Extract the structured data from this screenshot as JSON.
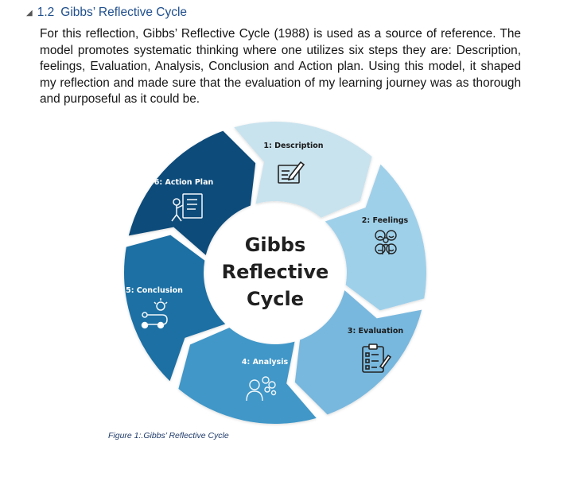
{
  "section": {
    "number": "1.2",
    "title": "Gibbs’ Reflective Cycle"
  },
  "paragraph": "For this reflection, Gibbs’ Reflective Cycle (1988) is used as a source of reference. The model promotes systematic thinking where one utilizes six steps they are: Description, feelings, Evaluation, Analysis, Conclusion and Action plan. Using this model, it shaped my reflection and made sure that the evaluation of my learning journey was as thorough and purposeful as it could be.",
  "diagram": {
    "center_lines": [
      "Gibbs",
      "Reflective",
      "Cycle"
    ],
    "segments": [
      {
        "label": "1: Description",
        "color": "#c9e3ee",
        "icon": "document-edit-icon"
      },
      {
        "label": "2: Feelings",
        "color": "#9fd0ea",
        "icon": "faces-icon"
      },
      {
        "label": "3: Evaluation",
        "color": "#79b8de",
        "icon": "checklist-clipboard-icon"
      },
      {
        "label": "4: Analysis",
        "color": "#3f97c8",
        "icon": "person-thinking-icon"
      },
      {
        "label": "5: Conclusion",
        "color": "#1f6fa4",
        "icon": "path-lightbulb-icon"
      },
      {
        "label": "6: Action Plan",
        "color": "#0e4c7a",
        "icon": "plan-board-icon"
      }
    ]
  },
  "caption": "Figure 1:.Gibbs’ Reflective Cycle"
}
